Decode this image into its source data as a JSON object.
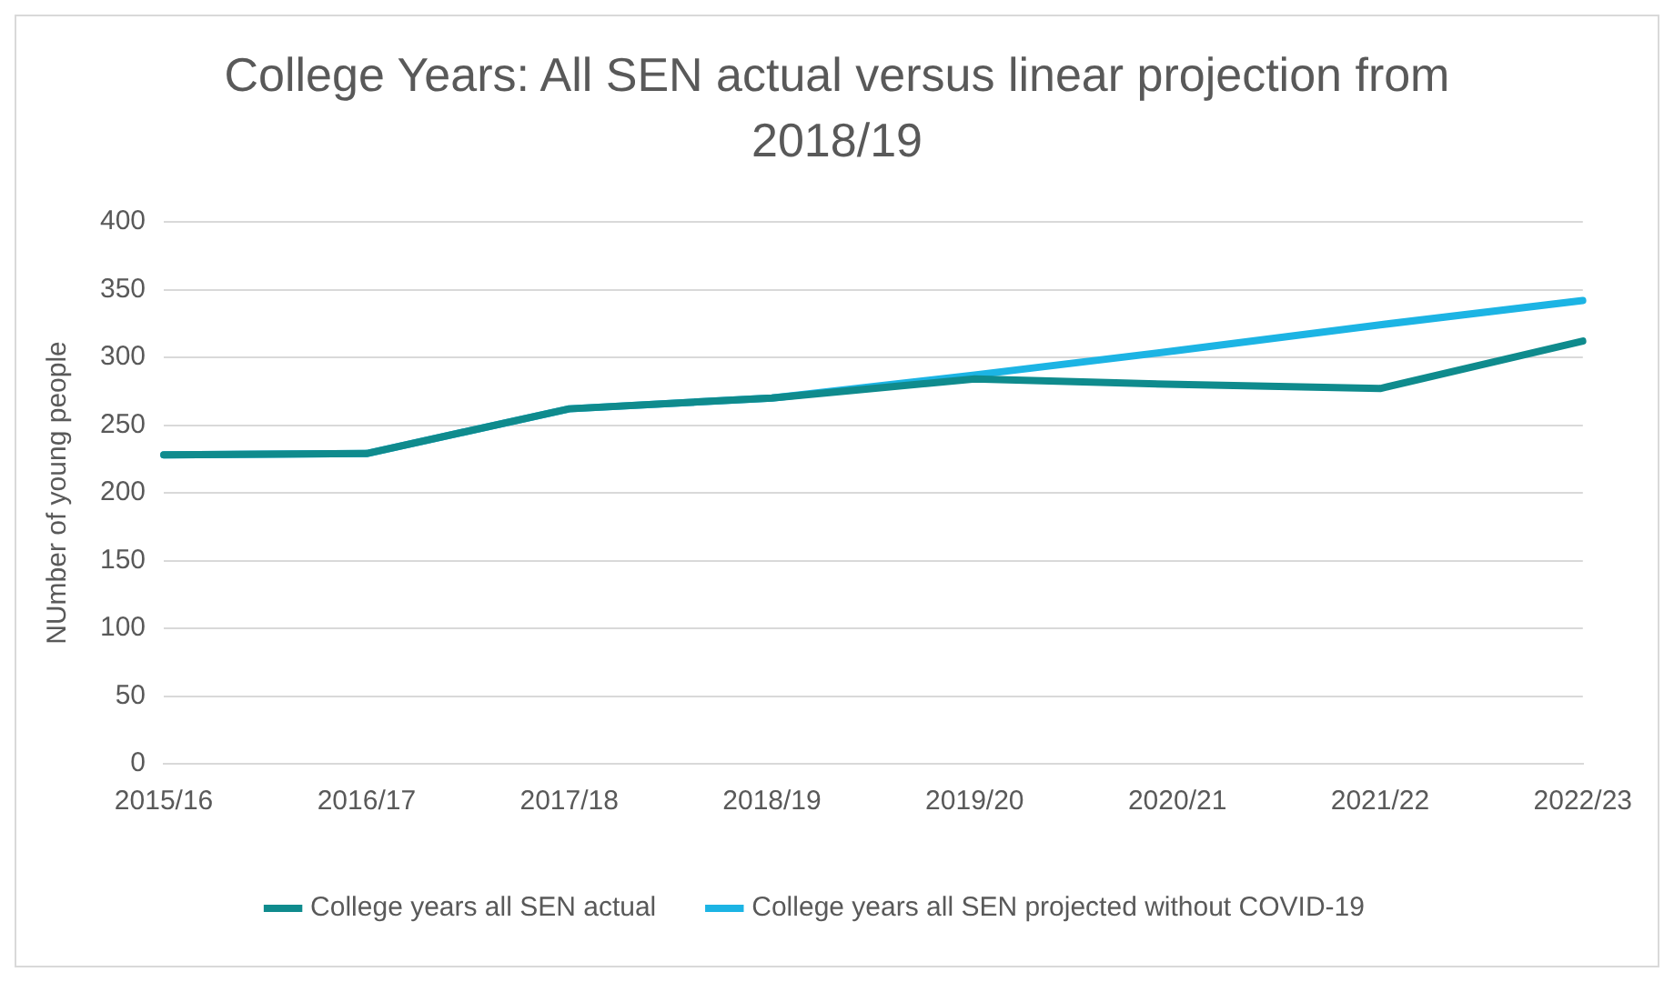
{
  "chart_data": {
    "type": "line",
    "title": "College Years: All SEN actual versus linear projection from 2018/19",
    "ylabel": "NUmber of young people",
    "categories": [
      "2015/16",
      "2016/17",
      "2017/18",
      "2018/19",
      "2019/20",
      "2020/21",
      "2021/22",
      "2022/23"
    ],
    "series": [
      {
        "name": "College years all SEN actual",
        "color": "#0f8b8d",
        "values": [
          228,
          229,
          262,
          270,
          284,
          280,
          277,
          312
        ]
      },
      {
        "name": "College years all SEN projected without COVID-19",
        "color": "#1cb4e4",
        "values": [
          228,
          229,
          262,
          270,
          287,
          305,
          324,
          342
        ]
      }
    ],
    "ylim": [
      0,
      400
    ],
    "yticks": [
      0,
      50,
      100,
      150,
      200,
      250,
      300,
      350,
      400
    ],
    "grid": "y",
    "legend": "bottom",
    "marker": "none",
    "line_style": "solid"
  }
}
